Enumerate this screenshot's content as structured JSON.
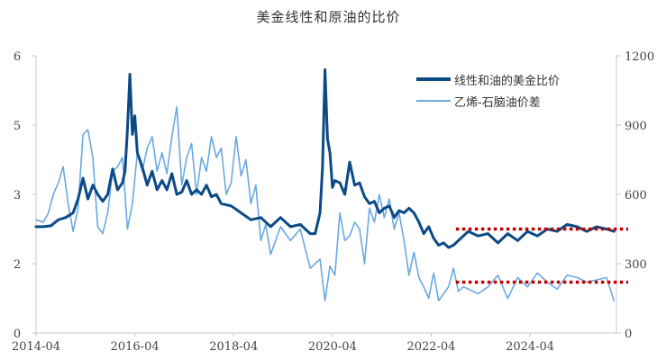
{
  "title": "美金线性和原油的比价",
  "legend": {
    "items": [
      {
        "label": "线性和油的美金比价",
        "color": "#0c4a86"
      },
      {
        "label": "乙烯-石脑油价差",
        "color": "#6aa9e3"
      }
    ]
  },
  "chart_data": {
    "type": "line",
    "title": "美金线性和原油的比价",
    "xlabel": "",
    "ylabel_left": "",
    "ylabel_right": "",
    "x_tick_labels": [
      "2014-04",
      "2016-04",
      "2018-04",
      "2020-04",
      "2022-04",
      "2024-04"
    ],
    "x_range": [
      2014.25,
      2026.0
    ],
    "y_left": {
      "range": [
        0,
        6
      ],
      "tick_values": [
        0,
        1.5,
        3,
        4.5,
        6
      ],
      "tick_labels": [
        "0",
        "2",
        "3",
        "5",
        "6"
      ]
    },
    "y_right": {
      "range": [
        0,
        1200
      ],
      "tick_values": [
        0,
        300,
        600,
        900,
        1200
      ],
      "tick_labels": [
        "0",
        "300",
        "600",
        "900",
        "1200"
      ]
    },
    "grid": false,
    "legend_position": "upper right",
    "series": [
      {
        "name": "线性和油的美金比价",
        "axis": "left",
        "color": "#0c4a86",
        "x": [
          2014.25,
          2014.4,
          2014.55,
          2014.7,
          2014.85,
          2015.0,
          2015.1,
          2015.2,
          2015.3,
          2015.4,
          2015.5,
          2015.6,
          2015.7,
          2015.8,
          2015.9,
          2016.0,
          2016.05,
          2016.1,
          2016.15,
          2016.2,
          2016.25,
          2016.3,
          2016.4,
          2016.5,
          2016.6,
          2016.7,
          2016.8,
          2016.9,
          2017.0,
          2017.1,
          2017.2,
          2017.3,
          2017.4,
          2017.5,
          2017.6,
          2017.7,
          2017.8,
          2017.9,
          2018.0,
          2018.2,
          2018.4,
          2018.6,
          2018.8,
          2019.0,
          2019.2,
          2019.4,
          2019.6,
          2019.8,
          2019.9,
          2020.0,
          2020.05,
          2020.1,
          2020.15,
          2020.2,
          2020.25,
          2020.3,
          2020.4,
          2020.5,
          2020.6,
          2020.7,
          2020.8,
          2020.9,
          2021.0,
          2021.1,
          2021.2,
          2021.3,
          2021.4,
          2021.5,
          2021.6,
          2021.7,
          2021.8,
          2021.9,
          2022.0,
          2022.1,
          2022.2,
          2022.3,
          2022.4,
          2022.5,
          2022.6,
          2022.7,
          2022.8,
          2022.9,
          2023.0,
          2023.2,
          2023.4,
          2023.6,
          2023.8,
          2024.0,
          2024.2,
          2024.4,
          2024.6,
          2024.8,
          2025.0,
          2025.2,
          2025.4,
          2025.6,
          2025.8,
          2025.95
        ],
        "values": [
          2.3,
          2.3,
          2.32,
          2.45,
          2.5,
          2.6,
          2.9,
          3.35,
          2.9,
          3.2,
          3.0,
          2.85,
          3.0,
          3.55,
          3.1,
          3.25,
          3.5,
          4.4,
          5.6,
          4.3,
          4.7,
          3.9,
          3.6,
          3.2,
          3.5,
          3.1,
          3.3,
          3.1,
          3.45,
          3.0,
          3.05,
          3.3,
          3.0,
          3.1,
          3.0,
          3.2,
          2.95,
          3.0,
          2.8,
          2.75,
          2.6,
          2.45,
          2.5,
          2.3,
          2.5,
          2.3,
          2.35,
          2.15,
          2.15,
          2.6,
          3.6,
          5.7,
          4.2,
          3.9,
          3.15,
          3.3,
          3.25,
          3.0,
          3.7,
          3.2,
          3.25,
          2.95,
          2.8,
          2.85,
          2.6,
          2.7,
          2.75,
          2.5,
          2.65,
          2.6,
          2.7,
          2.6,
          2.4,
          2.15,
          2.3,
          2.05,
          1.9,
          1.95,
          1.85,
          1.9,
          2.0,
          2.1,
          2.2,
          2.1,
          2.15,
          1.95,
          2.15,
          2.0,
          2.2,
          2.1,
          2.25,
          2.2,
          2.35,
          2.3,
          2.2,
          2.3,
          2.25,
          2.2
        ]
      },
      {
        "name": "乙烯-石脑油价差",
        "axis": "right",
        "color": "#6aa9e3",
        "x": [
          2014.25,
          2014.4,
          2014.5,
          2014.6,
          2014.7,
          2014.8,
          2014.9,
          2015.0,
          2015.1,
          2015.2,
          2015.3,
          2015.4,
          2015.5,
          2015.6,
          2015.7,
          2015.8,
          2015.9,
          2016.0,
          2016.1,
          2016.2,
          2016.3,
          2016.4,
          2016.5,
          2016.6,
          2016.7,
          2016.8,
          2016.9,
          2017.0,
          2017.1,
          2017.2,
          2017.3,
          2017.4,
          2017.5,
          2017.6,
          2017.7,
          2017.8,
          2017.9,
          2018.0,
          2018.1,
          2018.2,
          2018.3,
          2018.4,
          2018.5,
          2018.6,
          2018.7,
          2018.8,
          2018.9,
          2019.0,
          2019.2,
          2019.4,
          2019.6,
          2019.8,
          2020.0,
          2020.1,
          2020.2,
          2020.3,
          2020.4,
          2020.5,
          2020.6,
          2020.7,
          2020.8,
          2020.9,
          2021.0,
          2021.1,
          2021.2,
          2021.3,
          2021.4,
          2021.5,
          2021.6,
          2021.7,
          2021.8,
          2021.9,
          2022.0,
          2022.1,
          2022.2,
          2022.3,
          2022.4,
          2022.5,
          2022.6,
          2022.7,
          2022.8,
          2022.9,
          2023.0,
          2023.2,
          2023.4,
          2023.6,
          2023.8,
          2024.0,
          2024.2,
          2024.4,
          2024.6,
          2024.8,
          2025.0,
          2025.2,
          2025.4,
          2025.6,
          2025.8,
          2025.95
        ],
        "values": [
          490,
          480,
          520,
          600,
          650,
          720,
          560,
          440,
          540,
          860,
          880,
          760,
          460,
          430,
          520,
          700,
          720,
          760,
          450,
          560,
          780,
          700,
          800,
          850,
          700,
          780,
          690,
          850,
          980,
          640,
          760,
          820,
          600,
          760,
          700,
          850,
          760,
          800,
          600,
          650,
          850,
          680,
          750,
          560,
          640,
          400,
          470,
          340,
          460,
          400,
          450,
          280,
          320,
          140,
          290,
          250,
          520,
          400,
          420,
          480,
          450,
          300,
          540,
          480,
          600,
          500,
          580,
          450,
          520,
          400,
          250,
          350,
          240,
          200,
          150,
          260,
          140,
          170,
          200,
          280,
          180,
          200,
          190,
          170,
          200,
          250,
          150,
          240,
          200,
          260,
          220,
          190,
          250,
          240,
          220,
          230,
          240,
          140
        ]
      }
    ],
    "reference_lines": [
      {
        "axis": "left",
        "value": 2.25,
        "style": "dotted",
        "color": "#c00000",
        "x_start": 2022.75,
        "x_end": 2026.0
      },
      {
        "axis": "left",
        "value": 1.1,
        "style": "dotted",
        "color": "#c00000",
        "x_start": 2022.75,
        "x_end": 2026.0
      }
    ]
  }
}
